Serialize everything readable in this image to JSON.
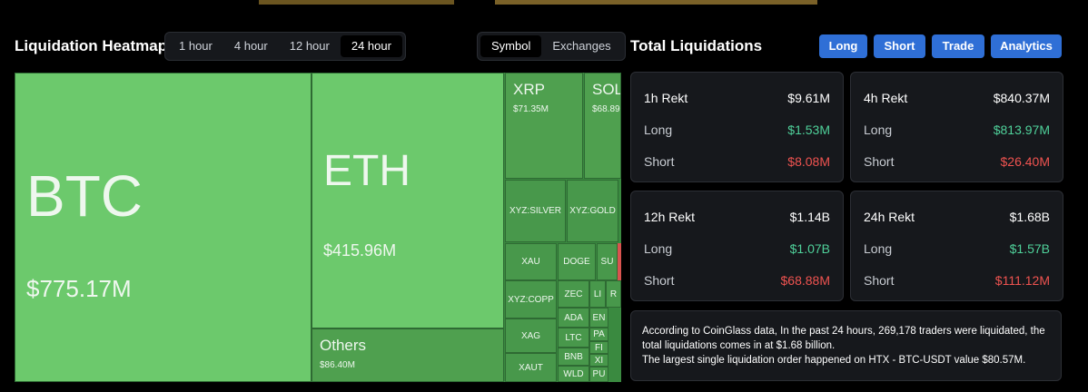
{
  "heatmap": {
    "title": "Liquidation Heatmap",
    "time_tabs": [
      "1 hour",
      "4 hour",
      "12 hour",
      "24 hour"
    ],
    "view_tabs": [
      "Symbol",
      "Exchanges"
    ],
    "cells": [
      {
        "label": "BTC",
        "value": "$775.17M"
      },
      {
        "label": "ETH",
        "value": "$415.96M"
      },
      {
        "label": "Others",
        "value": "$86.40M"
      },
      {
        "label": "XRP",
        "value": "$71.35M"
      },
      {
        "label": "SOL",
        "value": "$68.89"
      },
      {
        "label": "XYZ:SILVER"
      },
      {
        "label": "XYZ:GOLD"
      },
      {
        "label": "XAU"
      },
      {
        "label": "DOGE"
      },
      {
        "label": "SU"
      },
      {
        "label": "XYZ:COPP"
      },
      {
        "label": "ZEC"
      },
      {
        "label": "LI"
      },
      {
        "label": "R"
      },
      {
        "label": "ADA"
      },
      {
        "label": "EN"
      },
      {
        "label": "XAG"
      },
      {
        "label": "LTC"
      },
      {
        "label": "PA"
      },
      {
        "label": "FI"
      },
      {
        "label": "BNB"
      },
      {
        "label": "XI"
      },
      {
        "label": "XAUT"
      },
      {
        "label": "WLD"
      },
      {
        "label": "PU"
      }
    ]
  },
  "totals": {
    "title": "Total Liquidations",
    "buttons": [
      "Long",
      "Short",
      "Trade",
      "Analytics"
    ],
    "cards": [
      {
        "title": "1h Rekt",
        "total": "$9.61M",
        "long_label": "Long",
        "long": "$1.53M",
        "short_label": "Short",
        "short": "$8.08M"
      },
      {
        "title": "4h Rekt",
        "total": "$840.37M",
        "long_label": "Long",
        "long": "$813.97M",
        "short_label": "Short",
        "short": "$26.40M"
      },
      {
        "title": "12h Rekt",
        "total": "$1.14B",
        "long_label": "Long",
        "long": "$1.07B",
        "short_label": "Short",
        "short": "$68.88M"
      },
      {
        "title": "24h Rekt",
        "total": "$1.68B",
        "long_label": "Long",
        "long": "$1.57B",
        "short_label": "Short",
        "short": "$111.12M"
      }
    ],
    "note": [
      "According to CoinGlass data, In the past 24 hours, 269,178 traders were liquidated, the",
      "total liquidations comes in at $1.68 billion.",
      "The largest single liquidation order happened on HTX - BTC-USDT value $80.57M."
    ]
  }
}
